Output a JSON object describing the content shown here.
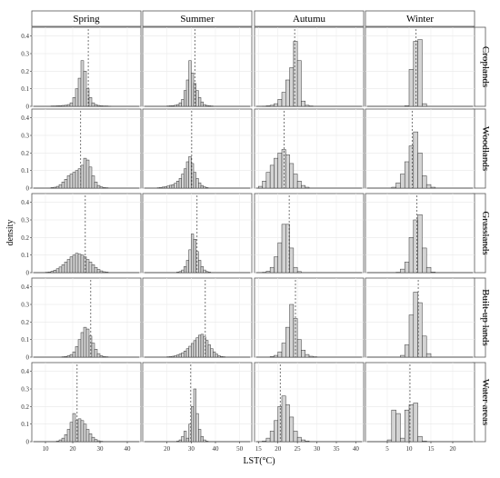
{
  "chart_data": {
    "type": "histogram-facet-grid",
    "ylabel": "density",
    "xlabel": "LST(°C)",
    "columns": [
      "Spring",
      "Summer",
      "Autumu",
      "Winter"
    ],
    "rows": [
      "Croplands",
      "Woodlands",
      "Grasslands",
      "Built-up lands",
      "Water areas"
    ],
    "y_ticks": [
      "0",
      "0.1",
      "0.2",
      "0.3",
      "0.4"
    ],
    "ylim": [
      0,
      0.45
    ],
    "panel_colors": {
      "bar_fill": "#d4d4d4",
      "bar_stroke": "#333333",
      "mean_line": "#555555"
    },
    "panels": [
      {
        "row": "Croplands",
        "col": "Spring",
        "xlim": [
          5,
          45
        ],
        "bin_width": 1,
        "bin_start": 12,
        "densities": [
          0.002,
          0.002,
          0.003,
          0.004,
          0.005,
          0.006,
          0.01,
          0.02,
          0.05,
          0.1,
          0.16,
          0.26,
          0.2,
          0.1,
          0.05,
          0.02,
          0.01,
          0.005,
          0.003,
          0.002,
          0.002,
          0.001
        ],
        "mean": 25.7
      },
      {
        "row": "Croplands",
        "col": "Summer",
        "xlim": [
          10,
          55
        ],
        "bin_width": 1,
        "bin_start": 20,
        "densities": [
          0.002,
          0.003,
          0.004,
          0.006,
          0.01,
          0.02,
          0.04,
          0.09,
          0.15,
          0.26,
          0.19,
          0.13,
          0.09,
          0.05,
          0.025,
          0.01,
          0.005,
          0.003,
          0.002
        ],
        "mean": 31.5
      },
      {
        "row": "Croplands",
        "col": "Autumu",
        "xlim": [
          14,
          42
        ],
        "bin_width": 1,
        "bin_start": 16,
        "densities": [
          0.001,
          0.003,
          0.006,
          0.015,
          0.04,
          0.08,
          0.15,
          0.22,
          0.37,
          0.26,
          0.03,
          0.006,
          0.002
        ],
        "mean": 24.3
      },
      {
        "row": "Croplands",
        "col": "Winter",
        "xlim": [
          0,
          25
        ],
        "bin_width": 1,
        "bin_start": 9,
        "densities": [
          0.003,
          0.21,
          0.37,
          0.38,
          0.015
        ],
        "mean": 11.6
      },
      {
        "row": "Woodlands",
        "col": "Spring",
        "xlim": [
          5,
          45
        ],
        "bin_width": 1,
        "bin_start": 12,
        "densities": [
          0.003,
          0.005,
          0.01,
          0.02,
          0.035,
          0.05,
          0.07,
          0.08,
          0.09,
          0.1,
          0.11,
          0.13,
          0.17,
          0.16,
          0.12,
          0.07,
          0.035,
          0.015,
          0.007,
          0.003,
          0.002
        ],
        "mean": 22.9
      },
      {
        "row": "Woodlands",
        "col": "Summer",
        "xlim": [
          10,
          55
        ],
        "bin_width": 1,
        "bin_start": 16,
        "densities": [
          0.002,
          0.004,
          0.006,
          0.008,
          0.012,
          0.016,
          0.02,
          0.028,
          0.04,
          0.055,
          0.08,
          0.11,
          0.15,
          0.18,
          0.14,
          0.09,
          0.055,
          0.03,
          0.015,
          0.007,
          0.003
        ],
        "mean": 30.2
      },
      {
        "row": "Woodlands",
        "col": "Autumu",
        "xlim": [
          14,
          42
        ],
        "bin_width": 1,
        "bin_start": 15,
        "densities": [
          0.01,
          0.04,
          0.09,
          0.13,
          0.17,
          0.2,
          0.22,
          0.19,
          0.14,
          0.08,
          0.04,
          0.015,
          0.005
        ],
        "mean": 21.6
      },
      {
        "row": "Woodlands",
        "col": "Winter",
        "xlim": [
          0,
          25
        ],
        "bin_width": 1,
        "bin_start": 6,
        "densities": [
          0.005,
          0.03,
          0.08,
          0.15,
          0.24,
          0.32,
          0.2,
          0.07,
          0.02,
          0.005
        ],
        "mean": 10.7
      },
      {
        "row": "Grasslands",
        "col": "Spring",
        "xlim": [
          5,
          45
        ],
        "bin_width": 1,
        "bin_start": 10,
        "densities": [
          0.002,
          0.004,
          0.008,
          0.014,
          0.022,
          0.032,
          0.045,
          0.06,
          0.075,
          0.09,
          0.1,
          0.11,
          0.105,
          0.1,
          0.09,
          0.075,
          0.06,
          0.045,
          0.03,
          0.018,
          0.01,
          0.005,
          0.003
        ],
        "mean": 24.6
      },
      {
        "row": "Grasslands",
        "col": "Summer",
        "xlim": [
          10,
          55
        ],
        "bin_width": 1,
        "bin_start": 24,
        "densities": [
          0.003,
          0.006,
          0.015,
          0.035,
          0.07,
          0.13,
          0.22,
          0.19,
          0.12,
          0.07,
          0.035,
          0.015,
          0.006,
          0.003
        ],
        "mean": 32.4
      },
      {
        "row": "Grasslands",
        "col": "Autumu",
        "xlim": [
          14,
          42
        ],
        "bin_width": 1,
        "bin_start": 16,
        "densities": [
          0.002,
          0.008,
          0.03,
          0.09,
          0.17,
          0.275,
          0.275,
          0.14,
          0.03,
          0.006
        ],
        "mean": 22.9
      },
      {
        "row": "Grasslands",
        "col": "Winter",
        "xlim": [
          0,
          25
        ],
        "bin_width": 1,
        "bin_start": 7,
        "densities": [
          0.002,
          0.02,
          0.06,
          0.2,
          0.3,
          0.33,
          0.14,
          0.03,
          0.003
        ],
        "mean": 11.8
      },
      {
        "row": "Built-up lands",
        "col": "Spring",
        "xlim": [
          5,
          45
        ],
        "bin_width": 1,
        "bin_start": 16,
        "densities": [
          0.002,
          0.004,
          0.008,
          0.015,
          0.03,
          0.06,
          0.1,
          0.14,
          0.17,
          0.16,
          0.12,
          0.08,
          0.045,
          0.02,
          0.008,
          0.003,
          0.002
        ],
        "mean": 26.6
      },
      {
        "row": "Built-up lands",
        "col": "Summer",
        "xlim": [
          10,
          55
        ],
        "bin_width": 1,
        "bin_start": 20,
        "densities": [
          0.002,
          0.003,
          0.005,
          0.008,
          0.012,
          0.018,
          0.025,
          0.035,
          0.048,
          0.062,
          0.078,
          0.094,
          0.11,
          0.125,
          0.13,
          0.115,
          0.095,
          0.07,
          0.048,
          0.03,
          0.017,
          0.008,
          0.004,
          0.002
        ],
        "mean": 35.8
      },
      {
        "row": "Built-up lands",
        "col": "Autumu",
        "xlim": [
          14,
          42
        ],
        "bin_width": 1,
        "bin_start": 18,
        "densities": [
          0.003,
          0.01,
          0.03,
          0.08,
          0.17,
          0.3,
          0.22,
          0.1,
          0.04,
          0.015,
          0.005,
          0.002
        ],
        "mean": 24.5
      },
      {
        "row": "Built-up lands",
        "col": "Winter",
        "xlim": [
          0,
          25
        ],
        "bin_width": 1,
        "bin_start": 8,
        "densities": [
          0.01,
          0.07,
          0.24,
          0.37,
          0.31,
          0.12,
          0.02
        ],
        "mean": 12.1
      },
      {
        "row": "Water areas",
        "col": "Spring",
        "xlim": [
          5,
          45
        ],
        "bin_width": 1,
        "bin_start": 14,
        "densities": [
          0.003,
          0.01,
          0.02,
          0.04,
          0.07,
          0.11,
          0.16,
          0.12,
          0.13,
          0.12,
          0.1,
          0.07,
          0.045,
          0.025,
          0.012,
          0.005,
          0.002
        ],
        "mean": 21.6
      },
      {
        "row": "Water areas",
        "col": "Summer",
        "xlim": [
          10,
          55
        ],
        "bin_width": 1,
        "bin_start": 24,
        "densities": [
          0.003,
          0.01,
          0.03,
          0.06,
          0.02,
          0.1,
          0.2,
          0.3,
          0.16,
          0.07,
          0.03,
          0.01,
          0.003
        ],
        "mean": 29.8
      },
      {
        "row": "Water areas",
        "col": "Autumu",
        "xlim": [
          14,
          42
        ],
        "bin_width": 1,
        "bin_start": 16,
        "densities": [
          0.004,
          0.02,
          0.06,
          0.12,
          0.2,
          0.26,
          0.21,
          0.14,
          0.06,
          0.025,
          0.01,
          0.004
        ],
        "mean": 20.6
      },
      {
        "row": "Water areas",
        "col": "Winter",
        "xlim": [
          0,
          25
        ],
        "bin_width": 1,
        "bin_start": 5,
        "densities": [
          0.01,
          0.18,
          0.16,
          0.02,
          0.18,
          0.21,
          0.22,
          0.03,
          0.004
        ],
        "mean": 10.2
      }
    ],
    "x_ticks": {
      "Spring": [
        "10",
        "20",
        "30",
        "40"
      ],
      "Summer": [
        "20",
        "30",
        "40",
        "50"
      ],
      "Autumu": [
        "15",
        "20",
        "25",
        "30",
        "35",
        "40"
      ],
      "Winter": [
        "5",
        "10",
        "15",
        "20"
      ]
    },
    "x_tick_values": {
      "Spring": [
        10,
        20,
        30,
        40
      ],
      "Summer": [
        20,
        30,
        40,
        50
      ],
      "Autumu": [
        15,
        20,
        25,
        30,
        35,
        40
      ],
      "Winter": [
        5,
        10,
        15,
        20
      ]
    },
    "grid": true
  }
}
